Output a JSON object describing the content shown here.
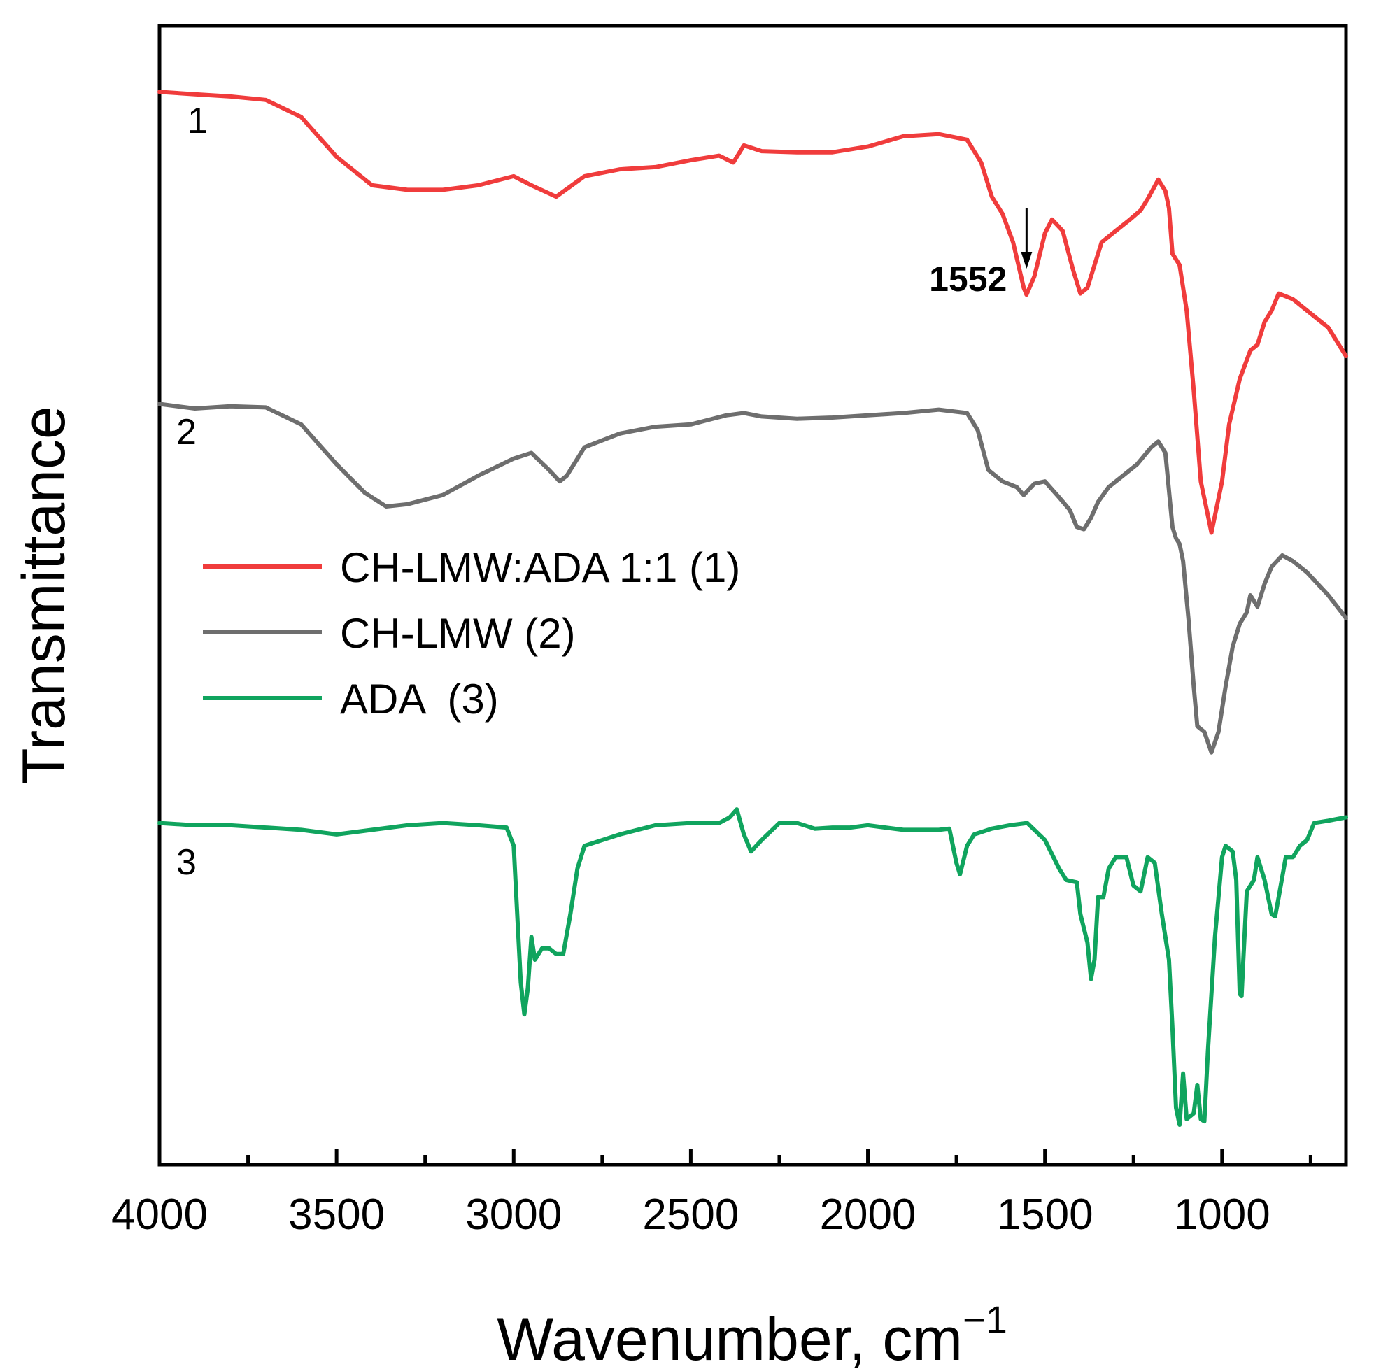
{
  "chart_data": {
    "type": "line",
    "title": "",
    "xlabel": "Wavenumber, cm",
    "xlabel_superscript": "−1",
    "ylabel": "Transmittance",
    "xlim": [
      4000,
      650
    ],
    "x_reversed": true,
    "ylim": [
      0,
      100
    ],
    "y_ticks_shown": false,
    "grid": false,
    "x_ticks": [
      "4000",
      "3500",
      "3000",
      "2500",
      "2000",
      "1500",
      "1000"
    ],
    "legend": {
      "placement": "center-left",
      "entries": [
        "CH-LMW:ADA 1:1 (1)",
        "CH-LMW (2)",
        "ADA  (3)"
      ]
    },
    "curve_labels": [
      "1",
      "2",
      "3"
    ],
    "annotations": [
      {
        "text": "1552",
        "x": 1552,
        "arrow": "down"
      }
    ],
    "series": [
      {
        "name": "CH-LMW:ADA 1:1 (1)",
        "color": "#f03c3c",
        "points": [
          [
            4000,
            94.2
          ],
          [
            3900,
            94
          ],
          [
            3800,
            93.8
          ],
          [
            3700,
            93.5
          ],
          [
            3600,
            92
          ],
          [
            3500,
            88.5
          ],
          [
            3400,
            86
          ],
          [
            3300,
            85.6
          ],
          [
            3200,
            85.6
          ],
          [
            3100,
            86
          ],
          [
            3000,
            86.8
          ],
          [
            2950,
            86
          ],
          [
            2880,
            85
          ],
          [
            2800,
            86.8
          ],
          [
            2700,
            87.4
          ],
          [
            2600,
            87.6
          ],
          [
            2500,
            88.2
          ],
          [
            2420,
            88.6
          ],
          [
            2380,
            88
          ],
          [
            2350,
            89.5
          ],
          [
            2300,
            89
          ],
          [
            2200,
            88.9
          ],
          [
            2100,
            88.9
          ],
          [
            2000,
            89.4
          ],
          [
            1900,
            90.3
          ],
          [
            1800,
            90.5
          ],
          [
            1720,
            90
          ],
          [
            1680,
            88
          ],
          [
            1650,
            85
          ],
          [
            1620,
            83.5
          ],
          [
            1590,
            81
          ],
          [
            1560,
            77
          ],
          [
            1552,
            76.4
          ],
          [
            1530,
            78
          ],
          [
            1500,
            81.8
          ],
          [
            1480,
            83
          ],
          [
            1450,
            82
          ],
          [
            1420,
            78.5
          ],
          [
            1400,
            76.5
          ],
          [
            1380,
            77
          ],
          [
            1360,
            79
          ],
          [
            1340,
            81
          ],
          [
            1300,
            82
          ],
          [
            1260,
            83
          ],
          [
            1230,
            83.8
          ],
          [
            1210,
            84.8
          ],
          [
            1180,
            86.5
          ],
          [
            1160,
            85.5
          ],
          [
            1150,
            84
          ],
          [
            1140,
            80
          ],
          [
            1120,
            79
          ],
          [
            1100,
            75
          ],
          [
            1080,
            68
          ],
          [
            1060,
            60
          ],
          [
            1040,
            57
          ],
          [
            1030,
            55.5
          ],
          [
            1000,
            60
          ],
          [
            980,
            65
          ],
          [
            950,
            69
          ],
          [
            920,
            71.5
          ],
          [
            900,
            72
          ],
          [
            880,
            74
          ],
          [
            860,
            75
          ],
          [
            840,
            76.5
          ],
          [
            800,
            76
          ],
          [
            760,
            75
          ],
          [
            700,
            73.5
          ],
          [
            650,
            71
          ]
        ]
      },
      {
        "name": "CH-LMW (2)",
        "color": "#6e6e6e",
        "points": [
          [
            4000,
            66.8
          ],
          [
            3900,
            66.4
          ],
          [
            3800,
            66.6
          ],
          [
            3700,
            66.5
          ],
          [
            3600,
            65
          ],
          [
            3500,
            61.5
          ],
          [
            3420,
            59
          ],
          [
            3360,
            57.8
          ],
          [
            3300,
            58
          ],
          [
            3200,
            58.8
          ],
          [
            3100,
            60.5
          ],
          [
            3000,
            62
          ],
          [
            2950,
            62.5
          ],
          [
            2900,
            61
          ],
          [
            2870,
            60
          ],
          [
            2850,
            60.5
          ],
          [
            2800,
            63
          ],
          [
            2700,
            64.2
          ],
          [
            2600,
            64.8
          ],
          [
            2500,
            65
          ],
          [
            2400,
            65.8
          ],
          [
            2350,
            66
          ],
          [
            2300,
            65.7
          ],
          [
            2200,
            65.5
          ],
          [
            2100,
            65.6
          ],
          [
            2000,
            65.8
          ],
          [
            1900,
            66
          ],
          [
            1800,
            66.3
          ],
          [
            1720,
            66
          ],
          [
            1690,
            64.5
          ],
          [
            1660,
            61
          ],
          [
            1620,
            60
          ],
          [
            1580,
            59.5
          ],
          [
            1560,
            58.8
          ],
          [
            1530,
            59.8
          ],
          [
            1500,
            60
          ],
          [
            1460,
            58.6
          ],
          [
            1430,
            57.5
          ],
          [
            1410,
            56
          ],
          [
            1390,
            55.8
          ],
          [
            1370,
            56.8
          ],
          [
            1350,
            58.2
          ],
          [
            1320,
            59.5
          ],
          [
            1280,
            60.5
          ],
          [
            1240,
            61.5
          ],
          [
            1200,
            63
          ],
          [
            1180,
            63.5
          ],
          [
            1160,
            62.5
          ],
          [
            1140,
            56
          ],
          [
            1130,
            55
          ],
          [
            1120,
            54.5
          ],
          [
            1110,
            53
          ],
          [
            1095,
            48
          ],
          [
            1080,
            42
          ],
          [
            1070,
            38.5
          ],
          [
            1050,
            38
          ],
          [
            1030,
            36.2
          ],
          [
            1010,
            38
          ],
          [
            990,
            42
          ],
          [
            970,
            45.5
          ],
          [
            950,
            47.5
          ],
          [
            930,
            48.5
          ],
          [
            920,
            50
          ],
          [
            900,
            49
          ],
          [
            880,
            51
          ],
          [
            860,
            52.5
          ],
          [
            830,
            53.5
          ],
          [
            800,
            53
          ],
          [
            760,
            52
          ],
          [
            700,
            50
          ],
          [
            650,
            48
          ]
        ]
      },
      {
        "name": "ADA  (3)",
        "color": "#10a45e",
        "points": [
          [
            4000,
            30
          ],
          [
            3900,
            29.8
          ],
          [
            3800,
            29.8
          ],
          [
            3700,
            29.6
          ],
          [
            3600,
            29.4
          ],
          [
            3500,
            29
          ],
          [
            3400,
            29.4
          ],
          [
            3300,
            29.8
          ],
          [
            3200,
            30
          ],
          [
            3100,
            29.8
          ],
          [
            3020,
            29.6
          ],
          [
            3000,
            28
          ],
          [
            2990,
            22
          ],
          [
            2980,
            16
          ],
          [
            2970,
            13.2
          ],
          [
            2960,
            15.5
          ],
          [
            2950,
            20
          ],
          [
            2940,
            18
          ],
          [
            2920,
            19
          ],
          [
            2900,
            19
          ],
          [
            2880,
            18.5
          ],
          [
            2860,
            18.5
          ],
          [
            2840,
            22
          ],
          [
            2820,
            26
          ],
          [
            2800,
            28
          ],
          [
            2700,
            29
          ],
          [
            2600,
            29.8
          ],
          [
            2500,
            30
          ],
          [
            2420,
            30
          ],
          [
            2390,
            30.5
          ],
          [
            2370,
            31.2
          ],
          [
            2350,
            29
          ],
          [
            2330,
            27.5
          ],
          [
            2300,
            28.5
          ],
          [
            2250,
            30
          ],
          [
            2200,
            30
          ],
          [
            2150,
            29.5
          ],
          [
            2100,
            29.6
          ],
          [
            2050,
            29.6
          ],
          [
            2000,
            29.8
          ],
          [
            1900,
            29.4
          ],
          [
            1800,
            29.4
          ],
          [
            1770,
            29.5
          ],
          [
            1750,
            26.5
          ],
          [
            1740,
            25.5
          ],
          [
            1720,
            28
          ],
          [
            1700,
            29
          ],
          [
            1650,
            29.5
          ],
          [
            1600,
            29.8
          ],
          [
            1550,
            30
          ],
          [
            1500,
            28.5
          ],
          [
            1460,
            26
          ],
          [
            1440,
            25
          ],
          [
            1410,
            24.8
          ],
          [
            1400,
            22
          ],
          [
            1380,
            19.5
          ],
          [
            1370,
            16.3
          ],
          [
            1360,
            18
          ],
          [
            1350,
            23.5
          ],
          [
            1335,
            23.5
          ],
          [
            1320,
            26
          ],
          [
            1300,
            27
          ],
          [
            1270,
            27
          ],
          [
            1250,
            24.5
          ],
          [
            1230,
            24
          ],
          [
            1210,
            27
          ],
          [
            1190,
            26.5
          ],
          [
            1170,
            22
          ],
          [
            1150,
            18
          ],
          [
            1140,
            12
          ],
          [
            1130,
            5
          ],
          [
            1120,
            3.5
          ],
          [
            1110,
            8
          ],
          [
            1100,
            4
          ],
          [
            1080,
            4.5
          ],
          [
            1070,
            7
          ],
          [
            1060,
            4
          ],
          [
            1050,
            3.8
          ],
          [
            1040,
            10
          ],
          [
            1020,
            20
          ],
          [
            1000,
            27
          ],
          [
            990,
            28
          ],
          [
            970,
            27.5
          ],
          [
            960,
            25
          ],
          [
            950,
            15
          ],
          [
            945,
            14.8
          ],
          [
            940,
            18
          ],
          [
            930,
            24
          ],
          [
            910,
            25
          ],
          [
            900,
            27
          ],
          [
            880,
            25
          ],
          [
            860,
            22
          ],
          [
            850,
            21.8
          ],
          [
            840,
            23.5
          ],
          [
            820,
            27
          ],
          [
            800,
            27
          ],
          [
            780,
            28
          ],
          [
            760,
            28.5
          ],
          [
            740,
            30
          ],
          [
            700,
            30.2
          ],
          [
            650,
            30.5
          ]
        ]
      }
    ]
  }
}
